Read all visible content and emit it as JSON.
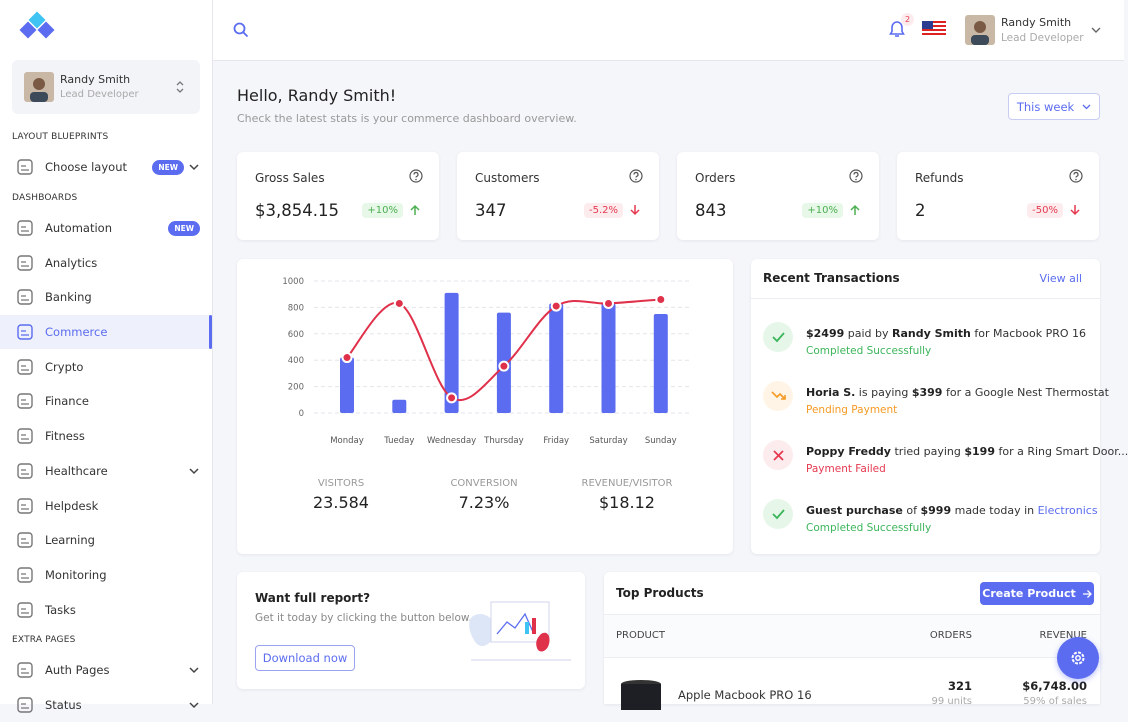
{
  "header": {
    "notifications": 2,
    "user": {
      "name": "Randy Smith",
      "role": "Lead Developer"
    }
  },
  "sidebar": {
    "profile": {
      "name": "Randy Smith",
      "role": "Lead Developer"
    },
    "sections": [
      {
        "title": "LAYOUT BLUEPRINTS",
        "items": [
          {
            "label": "Choose layout",
            "badge": "NEW",
            "expandable": true
          }
        ]
      },
      {
        "title": "DASHBOARDS",
        "items": [
          {
            "label": "Automation",
            "badge": "NEW"
          },
          {
            "label": "Analytics"
          },
          {
            "label": "Banking"
          },
          {
            "label": "Commerce",
            "active": true
          },
          {
            "label": "Crypto"
          },
          {
            "label": "Finance"
          },
          {
            "label": "Fitness"
          },
          {
            "label": "Healthcare",
            "expandable": true
          },
          {
            "label": "Helpdesk"
          },
          {
            "label": "Learning"
          },
          {
            "label": "Monitoring"
          },
          {
            "label": "Tasks"
          }
        ]
      },
      {
        "title": "EXTRA PAGES",
        "items": [
          {
            "label": "Auth Pages",
            "expandable": true
          },
          {
            "label": "Status",
            "expandable": true
          }
        ]
      }
    ]
  },
  "greeting": {
    "title": "Hello, Randy Smith!",
    "subtitle": "Check the latest stats is your commerce dashboard overview.",
    "period": "This week"
  },
  "stats": [
    {
      "label": "Gross Sales",
      "value": "$3,854.15",
      "change": "+10%",
      "trend": "up"
    },
    {
      "label": "Customers",
      "value": 347,
      "change": "-5.2%",
      "trend": "down"
    },
    {
      "label": "Orders",
      "value": 843,
      "change": "+10%",
      "trend": "up"
    },
    {
      "label": "Refunds",
      "value": 2,
      "change": "-50%",
      "trend": "down"
    }
  ],
  "chart_data": {
    "type": "combo",
    "categories": [
      "Monday",
      "Tueday",
      "Wednesday",
      "Thursday",
      "Friday",
      "Saturday",
      "Sunday"
    ],
    "series": [
      {
        "type": "bar",
        "color": "#5b6cf0",
        "values": [
          420,
          100,
          910,
          760,
          830,
          830,
          750
        ]
      },
      {
        "type": "line",
        "color": "#e0314b",
        "values": [
          420,
          830,
          115,
          355,
          810,
          830,
          860
        ]
      }
    ],
    "ylim": [
      0,
      1000
    ],
    "yticks": [
      0,
      200,
      400,
      600,
      800,
      1000
    ],
    "grid": true
  },
  "chart_metrics": [
    {
      "label": "VISITORS",
      "value": 23.584
    },
    {
      "label": "CONVERSION",
      "value": "7.23%"
    },
    {
      "label": "REVENUE/VISITOR",
      "value": "$18.12"
    }
  ],
  "transactions": {
    "title": "Recent Transactions",
    "link": "View all",
    "items": [
      {
        "parts": [
          {
            "text": "$2499",
            "style": "bold"
          },
          {
            "text": " paid by "
          },
          {
            "text": "Randy Smith",
            "style": "bold"
          },
          {
            "text": " for Macbook PRO 16"
          }
        ],
        "status": "Completed Successfully",
        "kind": "success"
      },
      {
        "parts": [
          {
            "text": "Horia S.",
            "style": "bold"
          },
          {
            "text": " is paying "
          },
          {
            "text": "$399",
            "style": "bold"
          },
          {
            "text": " for a Google Nest Thermostat"
          }
        ],
        "status": "Pending Payment",
        "kind": "pending"
      },
      {
        "parts": [
          {
            "text": "Poppy Freddy",
            "style": "bold"
          },
          {
            "text": " tried paying "
          },
          {
            "text": "$199",
            "style": "bold"
          },
          {
            "text": " for a Ring Smart Door..."
          }
        ],
        "status": "Payment Failed",
        "kind": "failed"
      },
      {
        "parts": [
          {
            "text": "Guest purchase",
            "style": "bold"
          },
          {
            "text": " of "
          },
          {
            "text": "$999",
            "style": "bold"
          },
          {
            "text": " made today in "
          },
          {
            "text": "Electronics",
            "style": "link"
          }
        ],
        "status": "Completed Successfully",
        "kind": "success"
      }
    ]
  },
  "report": {
    "title": "Want full report?",
    "text": "Get it today by clicking the button below.",
    "button": "Download now"
  },
  "top_products": {
    "title": "Top Products",
    "button": "Create Product",
    "columns": [
      "PRODUCT",
      "ORDERS",
      "REVENUE"
    ],
    "rows": [
      {
        "name": "Apple Macbook PRO 16",
        "orders": 321,
        "units": "99 units",
        "revenue": "$6,748.00",
        "share": "59% of sales"
      }
    ]
  }
}
